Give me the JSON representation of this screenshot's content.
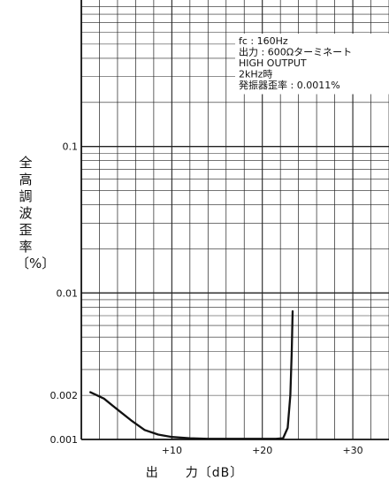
{
  "chart_data": {
    "type": "line",
    "xlabel": "出　　力〔dB〕",
    "ylabel": "全高調波歪率〔%〕",
    "y_scale": "log",
    "xlim": [
      0,
      34
    ],
    "ylim": [
      0.001,
      1
    ],
    "grid": true,
    "x_ticks": [
      {
        "value": 10,
        "label": "+10"
      },
      {
        "value": 20,
        "label": "+20"
      },
      {
        "value": 30,
        "label": "+30"
      }
    ],
    "y_ticks": [
      {
        "value": 0.1,
        "label": "0.1"
      },
      {
        "value": 0.01,
        "label": "0.01"
      },
      {
        "value": 0.002,
        "label": "0.002"
      },
      {
        "value": 0.001,
        "label": "0.001"
      }
    ],
    "annotations": [
      "fc : 160Hz",
      "出力 : 600Ωターミネート",
      "HIGH  OUTPUT",
      "2kHz時",
      "発振器歪率 : 0.0011%"
    ],
    "series": [
      {
        "x": [
          1.0,
          2.5,
          4.0,
          5.5,
          7.0,
          8.5,
          10.0,
          12.0,
          14.0,
          16.0,
          18.0,
          20.0,
          21.5,
          22.3,
          22.8,
          23.1,
          23.25,
          23.35
        ],
        "y": [
          0.0021,
          0.0019,
          0.0016,
          0.00135,
          0.00116,
          0.00108,
          0.00104,
          0.00102,
          0.00101,
          0.00101,
          0.00101,
          0.00101,
          0.00101,
          0.00102,
          0.0012,
          0.002,
          0.004,
          0.0075
        ]
      }
    ]
  }
}
